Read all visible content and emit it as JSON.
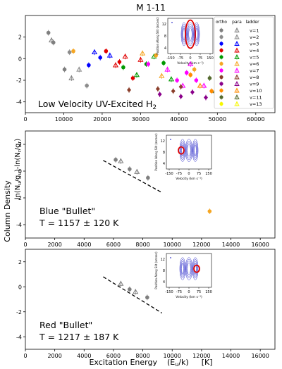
{
  "figure": {
    "title": "M 1-11",
    "xlabel_main": "Excitation Energy",
    "xlabel_unit1": "(E",
    "xlabel_unit1_sub": "u",
    "xlabel_unit1_end": "/k)",
    "xlabel_unit2": "[K]",
    "ylabel_text": "Column Density",
    "ylabel_math": "ln(N",
    "ylabel_math_sub1": "u",
    "ylabel_math_mid": "/g",
    "ylabel_math_sub2": "u",
    "ylabel_math_mid2": ")-ln(N",
    "ylabel_math_sub3": "r",
    "ylabel_math_mid3": "/g",
    "ylabel_math_sub4": "r",
    "ylabel_math_end": ")"
  },
  "colors": {
    "v1": "#7f7f7f",
    "v2": "#8c8c8c",
    "v3": "#0000ff",
    "v4": "#e00000",
    "v5": "#009900",
    "v6": "#f5a623",
    "v7": "#ff00ff",
    "v8": "#8b3f2b",
    "v9": "#8a008a",
    "v10": "#ff8c00",
    "v11": "#556b2f",
    "v13": "#f7f700",
    "contour": "#3333cc",
    "highlight": "#dd0000",
    "fit": "#000000"
  },
  "legend": {
    "headers": [
      "ortho",
      "para",
      "ladder"
    ],
    "entries": [
      {
        "label": "v=1",
        "color": "#7f7f7f"
      },
      {
        "label": "v=2",
        "color": "#8c8c8c"
      },
      {
        "label": "v=3",
        "color": "#0000ff"
      },
      {
        "label": "v=4",
        "color": "#e00000"
      },
      {
        "label": "v=5",
        "color": "#009900"
      },
      {
        "label": "v=6",
        "color": "#f5a623"
      },
      {
        "label": "v=7",
        "color": "#ff00ff"
      },
      {
        "label": "v=8",
        "color": "#8b3f2b"
      },
      {
        "label": "v=9",
        "color": "#8a008a"
      },
      {
        "label": "v=10",
        "color": "#ff8c00"
      },
      {
        "label": "v=11",
        "color": "#556b2f"
      },
      {
        "label": "v=13",
        "color": "#f7f700"
      }
    ]
  },
  "inset": {
    "xlabel": "Velocity (km s⁻¹)",
    "ylabel": "Position Along Slit (arcsec)",
    "xticks": [
      "-150",
      "-75",
      "0",
      "75",
      "150"
    ],
    "yticks": [
      "12",
      "8",
      "4"
    ]
  },
  "chart_data": [
    {
      "type": "scatter",
      "label_line1": "Low Velocity UV-Excited H",
      "label_sub": "2",
      "xlim": [
        0,
        65000
      ],
      "ylim": [
        -5,
        4
      ],
      "xticks": [
        "0",
        "10000",
        "20000",
        "30000",
        "40000",
        "50000",
        "60000"
      ],
      "yticks": [
        "2",
        "0",
        "-2",
        "-4"
      ],
      "series": [
        {
          "name": "v=1",
          "points": [
            [
              6000,
              2.4
            ],
            [
              6800,
              1.7
            ],
            [
              7300,
              1.5
            ],
            [
              12000,
              -1.8
            ],
            [
              10200,
              -1.0
            ]
          ]
        },
        {
          "name": "v=2",
          "points": [
            [
              11500,
              0.6
            ],
            [
              14000,
              -1.0
            ],
            [
              16000,
              -2.5
            ]
          ]
        },
        {
          "name": "v=3",
          "points": [
            [
              16500,
              -0.6
            ],
            [
              18000,
              0.6
            ],
            [
              19500,
              0.1
            ],
            [
              22000,
              0.3
            ]
          ]
        },
        {
          "name": "v=4",
          "points": [
            [
              21000,
              0.7
            ],
            [
              23500,
              -0.6
            ],
            [
              24500,
              -0.3
            ],
            [
              26000,
              0.2
            ],
            [
              28000,
              -1.8
            ],
            [
              30000,
              -0.1
            ]
          ]
        },
        {
          "name": "v=5",
          "points": [
            [
              25500,
              -0.8
            ],
            [
              29000,
              -1.5
            ],
            [
              31500,
              -0.5
            ],
            [
              33500,
              0.2
            ],
            [
              36000,
              -0.4
            ],
            [
              38000,
              -1.9
            ]
          ]
        },
        {
          "name": "v=6",
          "points": [
            [
              12500,
              0.7
            ],
            [
              30500,
              0.5
            ],
            [
              34000,
              0.3
            ],
            [
              35500,
              -1.6
            ],
            [
              44000,
              -1.0
            ]
          ]
        },
        {
          "name": "v=7",
          "points": [
            [
              32000,
              -0.5
            ],
            [
              37000,
              -1.0
            ],
            [
              39500,
              -2.0
            ],
            [
              41000,
              -2.5
            ],
            [
              42000,
              -1.3
            ],
            [
              43000,
              -0.5
            ],
            [
              44500,
              -2.0
            ],
            [
              46500,
              -2.5
            ]
          ]
        },
        {
          "name": "v=8",
          "points": [
            [
              27000,
              -2.9
            ],
            [
              34500,
              -2.8
            ],
            [
              38500,
              -3.0
            ],
            [
              40500,
              -2.6
            ]
          ]
        },
        {
          "name": "v=9",
          "points": [
            [
              35000,
              -3.3
            ],
            [
              40500,
              -3.5
            ],
            [
              43500,
              -3.1
            ],
            [
              47000,
              -3.6
            ]
          ]
        },
        {
          "name": "v=10",
          "points": [
            [
              43000,
              -1.5
            ],
            [
              45500,
              -2.5
            ],
            [
              48500,
              -3.0
            ]
          ]
        },
        {
          "name": "v=11",
          "points": [
            [
              48000,
              -1.8
            ],
            [
              49500,
              -3.0
            ],
            [
              52000,
              -2.7
            ]
          ]
        },
        {
          "name": "v=13",
          "points": [
            [
              51000,
              -1.0
            ],
            [
              51500,
              -2.4
            ],
            [
              52500,
              -3.5
            ]
          ]
        }
      ]
    },
    {
      "type": "scatter",
      "label_line1": "Blue \"Bullet\"",
      "label_line2": "T = 1157 ± 120 K",
      "xlim": [
        0,
        17000
      ],
      "ylim": [
        -5,
        3
      ],
      "xticks": [
        "0",
        "2000",
        "4000",
        "6000",
        "8000",
        "10000",
        "12000",
        "14000",
        "16000"
      ],
      "yticks": [
        "2",
        "0",
        "-2",
        "-4"
      ],
      "fit": [
        [
          5300,
          0.8
        ],
        [
          9300,
          -1.6
        ]
      ],
      "points": [
        {
          "x": 6150,
          "y": 0.85,
          "series": "v=1",
          "marker": "circle"
        },
        {
          "x": 6500,
          "y": 0.75,
          "series": "v=1",
          "marker": "triangle"
        },
        {
          "x": 7100,
          "y": 0.15,
          "series": "v=1",
          "marker": "circle"
        },
        {
          "x": 7600,
          "y": -0.05,
          "series": "v=1",
          "marker": "triangle"
        },
        {
          "x": 8350,
          "y": -0.5,
          "series": "v=1",
          "marker": "circle"
        },
        {
          "x": 12550,
          "y": -3.0,
          "series": "v=6",
          "marker": "circle"
        }
      ]
    },
    {
      "type": "scatter",
      "label_line1": "Red \"Bullet\"",
      "label_line2": "T = 1217 ± 187 K",
      "xlim": [
        0,
        17000
      ],
      "ylim": [
        -5,
        3
      ],
      "xticks": [
        "0",
        "2000",
        "4000",
        "6000",
        "8000",
        "10000",
        "12000",
        "14000",
        "16000"
      ],
      "yticks": [
        "2",
        "0",
        "-2",
        "-4"
      ],
      "fit": [
        [
          5300,
          0.8
        ],
        [
          9300,
          -2.1
        ]
      ],
      "points": [
        {
          "x": 6500,
          "y": 0.25,
          "series": "v=1",
          "marker": "triangle"
        },
        {
          "x": 7100,
          "y": -0.2,
          "series": "v=1",
          "marker": "circle"
        },
        {
          "x": 7500,
          "y": -0.4,
          "series": "v=1",
          "marker": "triangle"
        },
        {
          "x": 8300,
          "y": -0.85,
          "series": "v=1",
          "marker": "circle"
        }
      ]
    }
  ]
}
